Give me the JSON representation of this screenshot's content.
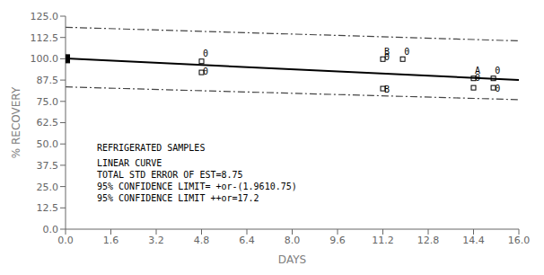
{
  "chart_data": {
    "type": "line",
    "xlabel": "DAYS",
    "ylabel": "% RECOVERY",
    "xlim": [
      0.0,
      16.0
    ],
    "ylim": [
      0.0,
      125.0
    ],
    "xticks": [
      {
        "value": 0.0,
        "label": "0.0"
      },
      1.6,
      3.2,
      4.8,
      6.4,
      {
        "value": 8.0,
        "label": "8.0"
      },
      9.6,
      11.2,
      12.8,
      14.4,
      {
        "value": 16.0,
        "label": "16.0"
      }
    ],
    "yticks": [
      {
        "value": 0.0,
        "label": "0.0"
      },
      12.5,
      {
        "value": 25.0,
        "label": "25.0"
      },
      37.5,
      {
        "value": 50.0,
        "label": "50.0"
      },
      62.5,
      {
        "value": 75.0,
        "label": "75.0"
      },
      87.5,
      {
        "value": 100.0,
        "label": "100.0"
      },
      112.5,
      {
        "value": 125.0,
        "label": "125.0"
      }
    ],
    "series": [
      {
        "type": "line",
        "color": "#444444",
        "line_style": "dashdot",
        "x": [
          0.0,
          16.0
        ],
        "values": [
          118.5,
          110.5
        ]
      },
      {
        "type": "line",
        "color": "#444444",
        "line_style": "dashdot",
        "x": [
          0.0,
          16.0
        ],
        "values": [
          83.5,
          76.0
        ]
      },
      {
        "type": "line",
        "color": "#000000",
        "line_style": "solid",
        "x": [
          0.0,
          16.0
        ],
        "values": [
          100.2,
          87.5
        ]
      },
      {
        "type": "scatter",
        "color": "#000000",
        "marker": "square_open",
        "x": [
          0.0,
          0.0,
          4.8,
          11.2,
          11.9,
          14.4,
          15.1
        ],
        "values": [
          100.5,
          99.5,
          98.5,
          99.8,
          99.8,
          88.5,
          88.5
        ]
      },
      {
        "type": "scatter",
        "color": "#000000",
        "marker": "square_open",
        "x": [
          4.8,
          11.2,
          14.4,
          15.1
        ],
        "values": [
          92.0,
          82.5,
          83.0,
          83.0
        ]
      },
      {
        "type": "scatter",
        "color": "#000000",
        "marker": "square",
        "x": [
          0.0
        ],
        "values": [
          100.0
        ]
      }
    ],
    "annotations": [
      {
        "x": 4.85,
        "y": 101.5,
        "text": "0"
      },
      {
        "x": 4.85,
        "y": 90.5,
        "text": "0"
      },
      {
        "x": 11.25,
        "y": 102.5,
        "text": "B"
      },
      {
        "x": 11.25,
        "y": 99.0,
        "text": "0"
      },
      {
        "x": 11.95,
        "y": 102.5,
        "text": "0"
      },
      {
        "x": 11.25,
        "y": 80.0,
        "text": "B"
      },
      {
        "x": 14.45,
        "y": 91.0,
        "text": "A"
      },
      {
        "x": 14.45,
        "y": 87.0,
        "text": "0"
      },
      {
        "x": 15.15,
        "y": 91.0,
        "text": "0"
      },
      {
        "x": 15.15,
        "y": 80.5,
        "text": "0"
      }
    ],
    "text_block": [
      "REFRIGERATED SAMPLES",
      "LINEAR CURVE",
      "TOTAL STD ERROR OF EST=8.75",
      "95% CONFIDENCE LIMIT= +or-(1.9610.75)",
      "95% CONFIDENCE LIMIT ++or=17.2"
    ]
  }
}
